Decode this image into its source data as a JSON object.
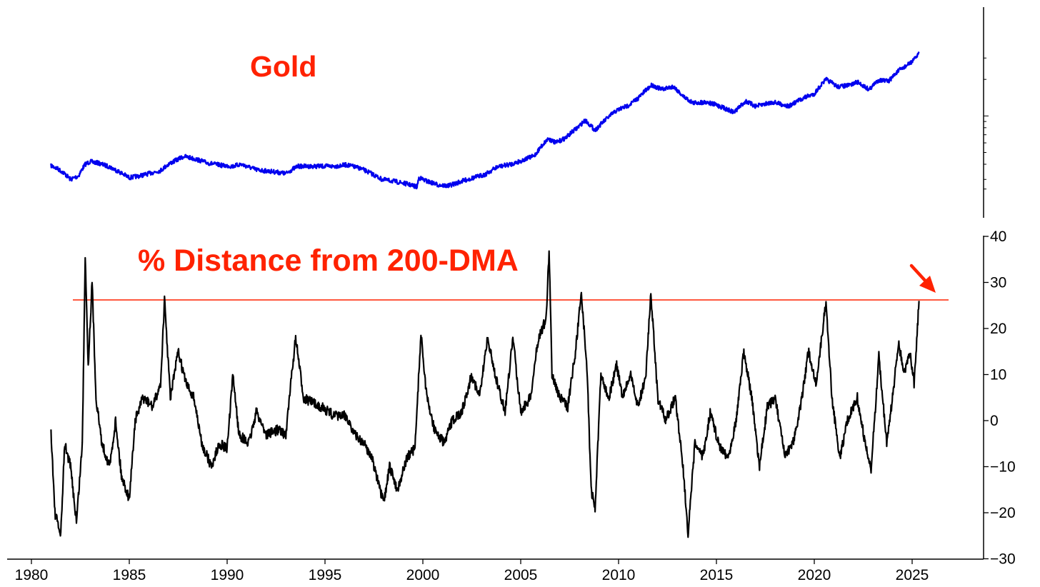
{
  "chart_data": [
    {
      "type": "line",
      "title": "Gold",
      "yscale": "log",
      "xlabel": "",
      "ylabel": "",
      "xlim": [
        1980,
        2027.5
      ],
      "color": "#0000ee",
      "points": [
        [
          1981.0,
          390
        ],
        [
          1981.3,
          370
        ],
        [
          1981.6,
          345
        ],
        [
          1982.0,
          300
        ],
        [
          1982.4,
          320
        ],
        [
          1982.75,
          400
        ],
        [
          1983.0,
          420
        ],
        [
          1983.4,
          410
        ],
        [
          1984.0,
          380
        ],
        [
          1984.5,
          345
        ],
        [
          1985.0,
          310
        ],
        [
          1985.5,
          320
        ],
        [
          1986.0,
          335
        ],
        [
          1986.6,
          355
        ],
        [
          1987.0,
          400
        ],
        [
          1987.8,
          465
        ],
        [
          1988.4,
          440
        ],
        [
          1989.0,
          410
        ],
        [
          1989.8,
          390
        ],
        [
          1990.3,
          385
        ],
        [
          1990.7,
          400
        ],
        [
          1991.5,
          360
        ],
        [
          1992.5,
          345
        ],
        [
          1993.0,
          335
        ],
        [
          1993.6,
          385
        ],
        [
          1994.5,
          385
        ],
        [
          1995.5,
          385
        ],
        [
          1996.1,
          395
        ],
        [
          1996.8,
          370
        ],
        [
          1997.3,
          340
        ],
        [
          1997.9,
          300
        ],
        [
          1998.5,
          290
        ],
        [
          1999.2,
          275
        ],
        [
          1999.7,
          260
        ],
        [
          1999.8,
          310
        ],
        [
          2000.2,
          290
        ],
        [
          2000.8,
          270
        ],
        [
          2001.3,
          265
        ],
        [
          2002.0,
          290
        ],
        [
          2002.6,
          310
        ],
        [
          2003.2,
          330
        ],
        [
          2003.8,
          380
        ],
        [
          2004.5,
          400
        ],
        [
          2005.0,
          425
        ],
        [
          2005.7,
          470
        ],
        [
          2006.4,
          650
        ],
        [
          2006.8,
          600
        ],
        [
          2007.3,
          660
        ],
        [
          2007.9,
          800
        ],
        [
          2008.3,
          920
        ],
        [
          2008.8,
          760
        ],
        [
          2009.3,
          920
        ],
        [
          2009.9,
          1110
        ],
        [
          2010.5,
          1220
        ],
        [
          2011.0,
          1400
        ],
        [
          2011.7,
          1800
        ],
        [
          2012.2,
          1650
        ],
        [
          2012.8,
          1750
        ],
        [
          2013.3,
          1450
        ],
        [
          2013.8,
          1280
        ],
        [
          2014.5,
          1300
        ],
        [
          2015.0,
          1230
        ],
        [
          2015.9,
          1070
        ],
        [
          2016.5,
          1320
        ],
        [
          2017.0,
          1200
        ],
        [
          2017.9,
          1300
        ],
        [
          2018.7,
          1200
        ],
        [
          2019.5,
          1420
        ],
        [
          2020.0,
          1520
        ],
        [
          2020.6,
          2000
        ],
        [
          2021.2,
          1740
        ],
        [
          2021.8,
          1790
        ],
        [
          2022.2,
          1900
        ],
        [
          2022.8,
          1650
        ],
        [
          2023.3,
          1980
        ],
        [
          2023.8,
          1930
        ],
        [
          2024.3,
          2350
        ],
        [
          2024.8,
          2650
        ],
        [
          2025.1,
          2900
        ],
        [
          2025.35,
          3300
        ]
      ]
    },
    {
      "type": "line",
      "title": "% Distance from 200-DMA",
      "xlabel": "",
      "ylabel": "",
      "xlim": [
        1980,
        2027.5
      ],
      "ylim": [
        -30,
        40
      ],
      "yticks": [
        40,
        30,
        20,
        10,
        0,
        -10,
        -20,
        -30
      ],
      "xticks": [
        1980,
        1985,
        1990,
        1995,
        2000,
        2005,
        2010,
        2015,
        2020,
        2025
      ],
      "x_tick_labels": [
        "1980",
        "1985",
        "1990",
        "1995",
        "2000",
        "2005",
        "2010",
        "2015",
        "2020",
        "2025"
      ],
      "y_tick_labels": [
        "40",
        "30",
        "20",
        "10",
        "0",
        "−10",
        "−20",
        "−30"
      ],
      "color": "#000000",
      "threshold_line": {
        "y": 26.2,
        "color": "#ff2200"
      },
      "points": [
        [
          1981.0,
          -2
        ],
        [
          1981.2,
          -20
        ],
        [
          1981.5,
          -25
        ],
        [
          1981.7,
          -5
        ],
        [
          1982.0,
          -10
        ],
        [
          1982.3,
          -22
        ],
        [
          1982.6,
          -5
        ],
        [
          1982.75,
          36
        ],
        [
          1982.9,
          12
        ],
        [
          1983.1,
          30
        ],
        [
          1983.3,
          5
        ],
        [
          1983.6,
          -5
        ],
        [
          1984.0,
          -10
        ],
        [
          1984.3,
          0
        ],
        [
          1984.6,
          -12
        ],
        [
          1985.0,
          -17
        ],
        [
          1985.3,
          0
        ],
        [
          1985.7,
          5
        ],
        [
          1986.2,
          3
        ],
        [
          1986.6,
          8
        ],
        [
          1986.8,
          26
        ],
        [
          1987.1,
          5
        ],
        [
          1987.5,
          15
        ],
        [
          1987.9,
          8
        ],
        [
          1988.3,
          5
        ],
        [
          1988.7,
          -5
        ],
        [
          1989.2,
          -10
        ],
        [
          1989.6,
          -5
        ],
        [
          1990.0,
          -6
        ],
        [
          1990.3,
          10
        ],
        [
          1990.6,
          -3
        ],
        [
          1991.1,
          -5
        ],
        [
          1991.5,
          2
        ],
        [
          1992.0,
          -3
        ],
        [
          1992.6,
          -2
        ],
        [
          1993.0,
          -3
        ],
        [
          1993.3,
          10
        ],
        [
          1993.5,
          18
        ],
        [
          1993.9,
          5
        ],
        [
          1994.3,
          4
        ],
        [
          1994.8,
          3
        ],
        [
          1995.5,
          1
        ],
        [
          1996.1,
          1
        ],
        [
          1996.5,
          -3
        ],
        [
          1997.0,
          -5
        ],
        [
          1997.4,
          -8
        ],
        [
          1997.8,
          -15
        ],
        [
          1998.0,
          -18
        ],
        [
          1998.3,
          -10
        ],
        [
          1998.7,
          -15
        ],
        [
          1999.2,
          -8
        ],
        [
          1999.6,
          -6
        ],
        [
          1999.9,
          19
        ],
        [
          2000.2,
          5
        ],
        [
          2000.6,
          -2
        ],
        [
          2001.1,
          -5
        ],
        [
          2001.5,
          0
        ],
        [
          2002.0,
          2
        ],
        [
          2002.5,
          10
        ],
        [
          2002.9,
          5
        ],
        [
          2003.3,
          18
        ],
        [
          2003.8,
          8
        ],
        [
          2004.2,
          2
        ],
        [
          2004.6,
          18
        ],
        [
          2005.0,
          2
        ],
        [
          2005.5,
          5
        ],
        [
          2005.9,
          18
        ],
        [
          2006.3,
          22
        ],
        [
          2006.45,
          37
        ],
        [
          2006.6,
          10
        ],
        [
          2007.0,
          5
        ],
        [
          2007.4,
          3
        ],
        [
          2007.8,
          15
        ],
        [
          2008.1,
          28
        ],
        [
          2008.4,
          10
        ],
        [
          2008.6,
          -15
        ],
        [
          2008.8,
          -19
        ],
        [
          2009.1,
          10
        ],
        [
          2009.5,
          5
        ],
        [
          2009.9,
          12
        ],
        [
          2010.2,
          5
        ],
        [
          2010.6,
          10
        ],
        [
          2011.0,
          3
        ],
        [
          2011.4,
          10
        ],
        [
          2011.65,
          28
        ],
        [
          2012.0,
          5
        ],
        [
          2012.4,
          0
        ],
        [
          2012.9,
          5
        ],
        [
          2013.3,
          -10
        ],
        [
          2013.55,
          -25
        ],
        [
          2013.9,
          -5
        ],
        [
          2014.3,
          -8
        ],
        [
          2014.7,
          2
        ],
        [
          2015.1,
          -5
        ],
        [
          2015.6,
          -8
        ],
        [
          2016.0,
          0
        ],
        [
          2016.4,
          15
        ],
        [
          2016.8,
          5
        ],
        [
          2017.2,
          -10
        ],
        [
          2017.6,
          3
        ],
        [
          2018.0,
          5
        ],
        [
          2018.5,
          -8
        ],
        [
          2018.9,
          -5
        ],
        [
          2019.3,
          3
        ],
        [
          2019.7,
          15
        ],
        [
          2020.1,
          8
        ],
        [
          2020.6,
          26
        ],
        [
          2020.9,
          5
        ],
        [
          2021.3,
          -8
        ],
        [
          2021.7,
          0
        ],
        [
          2022.2,
          5
        ],
        [
          2022.6,
          -5
        ],
        [
          2022.9,
          -11
        ],
        [
          2023.3,
          14
        ],
        [
          2023.7,
          -5
        ],
        [
          2024.0,
          5
        ],
        [
          2024.3,
          17
        ],
        [
          2024.6,
          10
        ],
        [
          2024.9,
          15
        ],
        [
          2025.1,
          8
        ],
        [
          2025.35,
          26
        ]
      ]
    }
  ]
}
